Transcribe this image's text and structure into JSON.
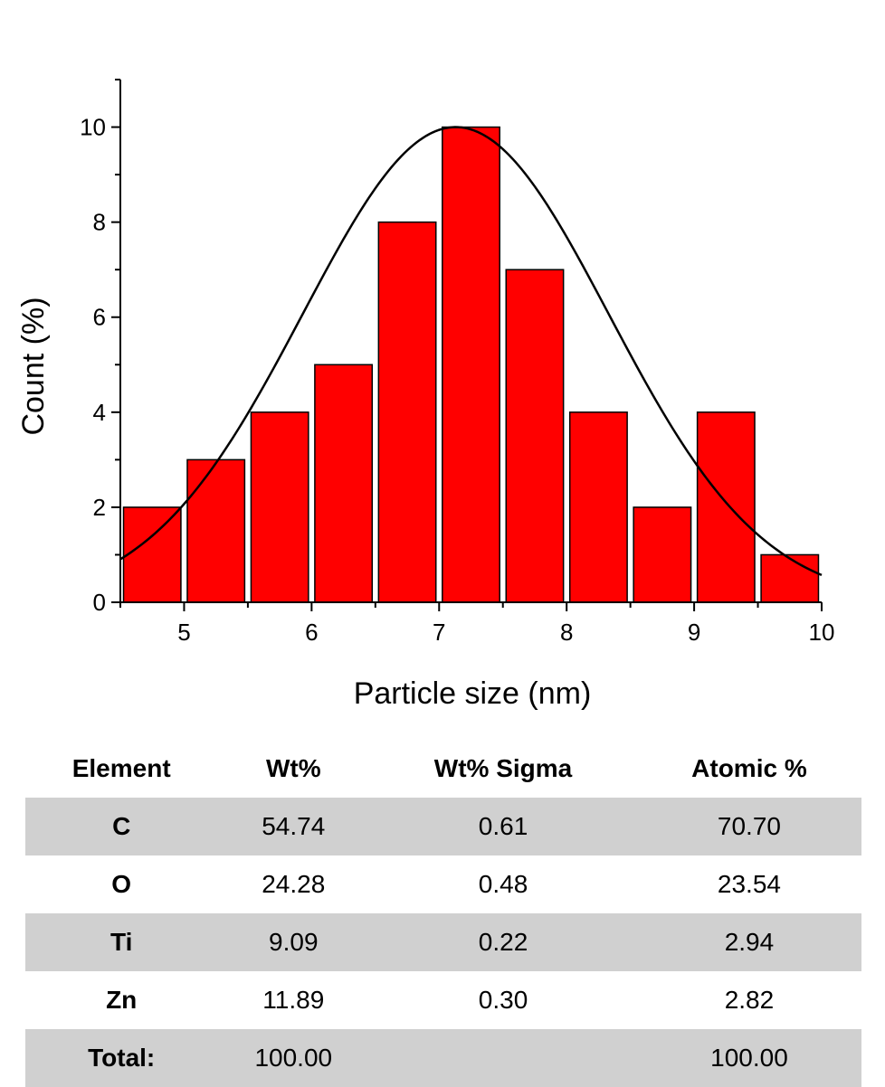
{
  "chart_data": {
    "type": "bar",
    "xlabel": "Particle size (nm)",
    "ylabel": "Count (%)",
    "xlim": [
      4.5,
      10
    ],
    "ylim": [
      0,
      11
    ],
    "x_ticks": [
      5,
      6,
      7,
      8,
      9,
      10
    ],
    "y_ticks": [
      0,
      2,
      4,
      6,
      8,
      10
    ],
    "bar_width": 0.45,
    "bars": [
      {
        "x": 4.75,
        "value": 2
      },
      {
        "x": 5.25,
        "value": 3
      },
      {
        "x": 5.75,
        "value": 4
      },
      {
        "x": 6.25,
        "value": 5
      },
      {
        "x": 6.75,
        "value": 8
      },
      {
        "x": 7.25,
        "value": 10
      },
      {
        "x": 7.75,
        "value": 7
      },
      {
        "x": 8.25,
        "value": 4
      },
      {
        "x": 8.75,
        "value": 2
      },
      {
        "x": 9.25,
        "value": 4
      },
      {
        "x": 9.75,
        "value": 1
      }
    ],
    "fit_curve": {
      "type": "gaussian",
      "peak": 10,
      "center": 7.13,
      "sigma": 1.2
    },
    "bar_color": "#ff0000",
    "curve_color": "#000000"
  },
  "table": {
    "headers": [
      "Element",
      "Wt%",
      "Wt% Sigma",
      "Atomic %"
    ],
    "rows": [
      [
        "C",
        "54.74",
        "0.61",
        "70.70"
      ],
      [
        "O",
        "24.28",
        "0.48",
        "23.54"
      ],
      [
        "Ti",
        "9.09",
        "0.22",
        "2.94"
      ],
      [
        "Zn",
        "11.89",
        "0.30",
        "2.82"
      ],
      [
        "Total:",
        "100.00",
        "",
        "100.00"
      ]
    ],
    "shade_color": "#d0d0d0"
  }
}
